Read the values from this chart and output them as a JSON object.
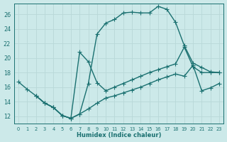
{
  "xlabel": "Humidex (Indice chaleur)",
  "background_color": "#cce9e9",
  "grid_color": "#afd4d4",
  "line_color": "#1a7070",
  "xlim": [
    -0.5,
    23.5
  ],
  "ylim": [
    11.0,
    27.5
  ],
  "xticks": [
    0,
    1,
    2,
    3,
    4,
    5,
    6,
    7,
    8,
    9,
    10,
    11,
    12,
    13,
    14,
    15,
    16,
    17,
    18,
    19,
    20,
    21,
    22,
    23
  ],
  "yticks": [
    12,
    14,
    16,
    18,
    20,
    22,
    24,
    26
  ],
  "curve1_x": [
    0,
    1,
    2,
    3,
    4,
    5,
    6,
    7,
    8,
    9,
    10,
    11,
    12,
    13,
    14,
    15,
    16,
    17,
    18,
    19,
    20,
    21,
    22,
    23
  ],
  "curve1_y": [
    16.7,
    15.7,
    14.8,
    13.8,
    13.2,
    12.1,
    11.7,
    12.3,
    16.5,
    23.3,
    24.8,
    25.3,
    26.2,
    26.3,
    26.2,
    26.2,
    27.1,
    26.7,
    24.9,
    21.7,
    19.3,
    18.7,
    18.1,
    18.0
  ],
  "curve2_x": [
    2,
    3,
    4,
    5,
    6,
    7,
    8,
    9,
    10,
    11,
    12,
    13,
    14,
    15,
    16,
    17,
    18,
    19,
    20,
    21,
    22,
    23
  ],
  "curve2_y": [
    14.8,
    13.8,
    13.2,
    12.1,
    11.7,
    20.8,
    19.5,
    16.6,
    15.5,
    16.0,
    16.5,
    17.0,
    17.5,
    18.0,
    18.4,
    18.8,
    19.2,
    21.5,
    18.8,
    18.0,
    18.0,
    18.0
  ],
  "curve3_x": [
    2,
    3,
    4,
    5,
    6,
    7,
    8,
    9,
    10,
    11,
    12,
    13,
    14,
    15,
    16,
    17,
    18,
    19,
    20,
    21,
    22,
    23
  ],
  "curve3_y": [
    14.8,
    13.8,
    13.2,
    12.1,
    11.7,
    12.3,
    13.0,
    13.8,
    14.5,
    14.8,
    15.2,
    15.6,
    16.0,
    16.5,
    17.0,
    17.4,
    17.8,
    17.5,
    19.0,
    15.5,
    15.9,
    16.5
  ]
}
